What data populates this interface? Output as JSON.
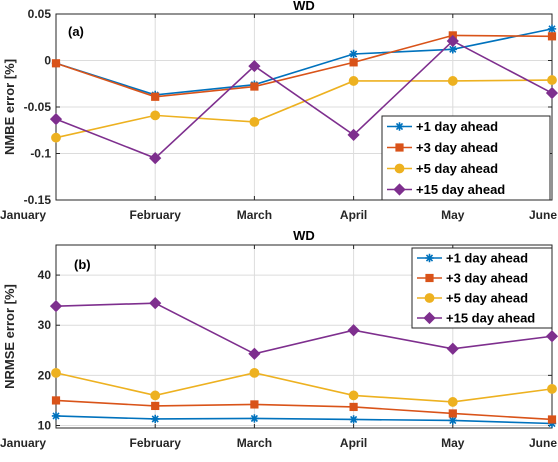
{
  "chart_data": [
    {
      "type": "line",
      "title": "WD",
      "panel_label": "(a)",
      "xlabel": "",
      "ylabel": "NMBE error [%]",
      "categories": [
        "January",
        "February",
        "March",
        "April",
        "May",
        "June"
      ],
      "ylim": [
        -0.15,
        0.05
      ],
      "yticks": [
        -0.15,
        -0.1,
        -0.05,
        0,
        0.05
      ],
      "ytick_labels": [
        "-0.15",
        "-0.1",
        "-0.05",
        "0",
        "0.05"
      ],
      "grid": true,
      "legend_position": "bottom-right",
      "series": [
        {
          "name": "+1 day ahead",
          "color": "#0072BD",
          "marker": "star",
          "values": [
            -0.003,
            -0.037,
            -0.026,
            0.007,
            0.012,
            0.034
          ]
        },
        {
          "name": "+3 day ahead",
          "color": "#D95319",
          "marker": "square",
          "values": [
            -0.003,
            -0.039,
            -0.028,
            -0.002,
            0.027,
            0.026
          ]
        },
        {
          "name": "+5 day ahead",
          "color": "#EDB120",
          "marker": "circle",
          "values": [
            -0.083,
            -0.059,
            -0.066,
            -0.022,
            -0.022,
            -0.021
          ]
        },
        {
          "name": "+15 day ahead",
          "color": "#7E2F8E",
          "marker": "diamond",
          "values": [
            -0.063,
            -0.105,
            -0.006,
            -0.08,
            0.021,
            -0.035
          ]
        }
      ]
    },
    {
      "type": "line",
      "title": "WD",
      "panel_label": "(b)",
      "xlabel": "",
      "ylabel": "NRMSE error [%]",
      "categories": [
        "January",
        "February",
        "March",
        "April",
        "May",
        "June"
      ],
      "ylim": [
        9.5,
        46
      ],
      "yticks": [
        10,
        20,
        30,
        40
      ],
      "ytick_labels": [
        "10",
        "20",
        "30",
        "40"
      ],
      "grid": true,
      "legend_position": "top-right",
      "series": [
        {
          "name": "+1 day ahead",
          "color": "#0072BD",
          "marker": "star",
          "values": [
            11.9,
            11.3,
            11.4,
            11.2,
            11.0,
            10.4
          ]
        },
        {
          "name": "+3 day ahead",
          "color": "#D95319",
          "marker": "square",
          "values": [
            15.0,
            13.9,
            14.2,
            13.7,
            12.4,
            11.2
          ]
        },
        {
          "name": "+5 day ahead",
          "color": "#EDB120",
          "marker": "circle",
          "values": [
            20.5,
            16.0,
            20.5,
            16.0,
            14.7,
            17.3
          ]
        },
        {
          "name": "+15 day ahead",
          "color": "#7E2F8E",
          "marker": "diamond",
          "values": [
            33.8,
            34.4,
            24.3,
            29.0,
            25.3,
            27.8
          ]
        }
      ]
    }
  ]
}
